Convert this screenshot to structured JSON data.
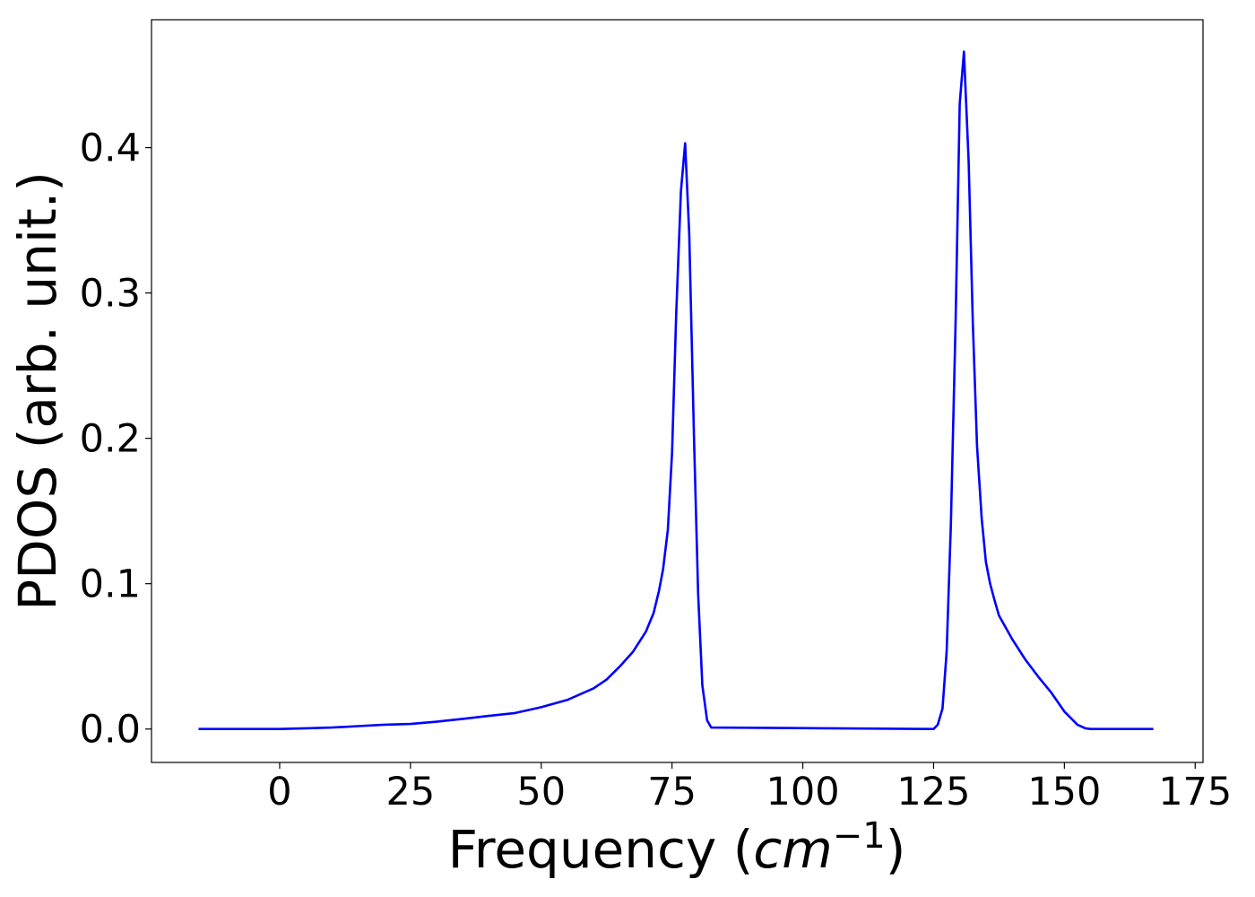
{
  "chart_data": {
    "type": "line",
    "title": "",
    "xlabel": "Frequency",
    "xlabel_open": "(",
    "xlabel_unit": "cm",
    "xlabel_exponent": "−1",
    "xlabel_close": ")",
    "ylabel": "PDOS (arb. unit.)",
    "xlim": [
      -24.5,
      176.5
    ],
    "ylim": [
      -0.023,
      0.488
    ],
    "xticks": [
      0,
      25,
      50,
      75,
      100,
      125,
      150,
      175
    ],
    "xtick_labels": [
      "0",
      "25",
      "50",
      "75",
      "100",
      "125",
      "150",
      "175"
    ],
    "yticks": [
      0.0,
      0.1,
      0.2,
      0.3,
      0.4
    ],
    "ytick_labels": [
      "0.0",
      "0.1",
      "0.2",
      "0.3",
      "0.4"
    ],
    "grid": false,
    "legend": "none",
    "series": [
      {
        "color": "#0000ff",
        "x": [
          -15.5,
          0,
          5,
          10,
          15,
          20,
          25,
          30,
          35,
          40,
          45,
          50,
          55,
          60,
          62.5,
          65,
          67.5,
          70,
          71.5,
          72.5,
          73.3,
          74.2,
          75,
          75.8,
          76.7,
          77.5,
          78.3,
          79.2,
          80,
          80.8,
          81.7,
          82.5,
          125,
          125.8,
          126.7,
          127.5,
          128.3,
          129.2,
          130,
          130.8,
          131.7,
          132.5,
          133.3,
          134.2,
          135,
          135.8,
          136.7,
          137.5,
          140,
          142.5,
          145,
          147.5,
          150,
          152.5,
          154,
          155,
          167
        ],
        "y": [
          0.0,
          0.0,
          0.0005,
          0.001,
          0.002,
          0.003,
          0.0035,
          0.005,
          0.007,
          0.009,
          0.011,
          0.015,
          0.02,
          0.028,
          0.034,
          0.043,
          0.053,
          0.067,
          0.08,
          0.095,
          0.11,
          0.137,
          0.19,
          0.285,
          0.37,
          0.403,
          0.34,
          0.2,
          0.093,
          0.03,
          0.006,
          0.001,
          0.0,
          0.003,
          0.014,
          0.053,
          0.14,
          0.28,
          0.43,
          0.466,
          0.39,
          0.28,
          0.195,
          0.145,
          0.115,
          0.1,
          0.088,
          0.078,
          0.062,
          0.048,
          0.036,
          0.025,
          0.012,
          0.003,
          0.0005,
          0.0,
          0.0
        ]
      }
    ]
  }
}
